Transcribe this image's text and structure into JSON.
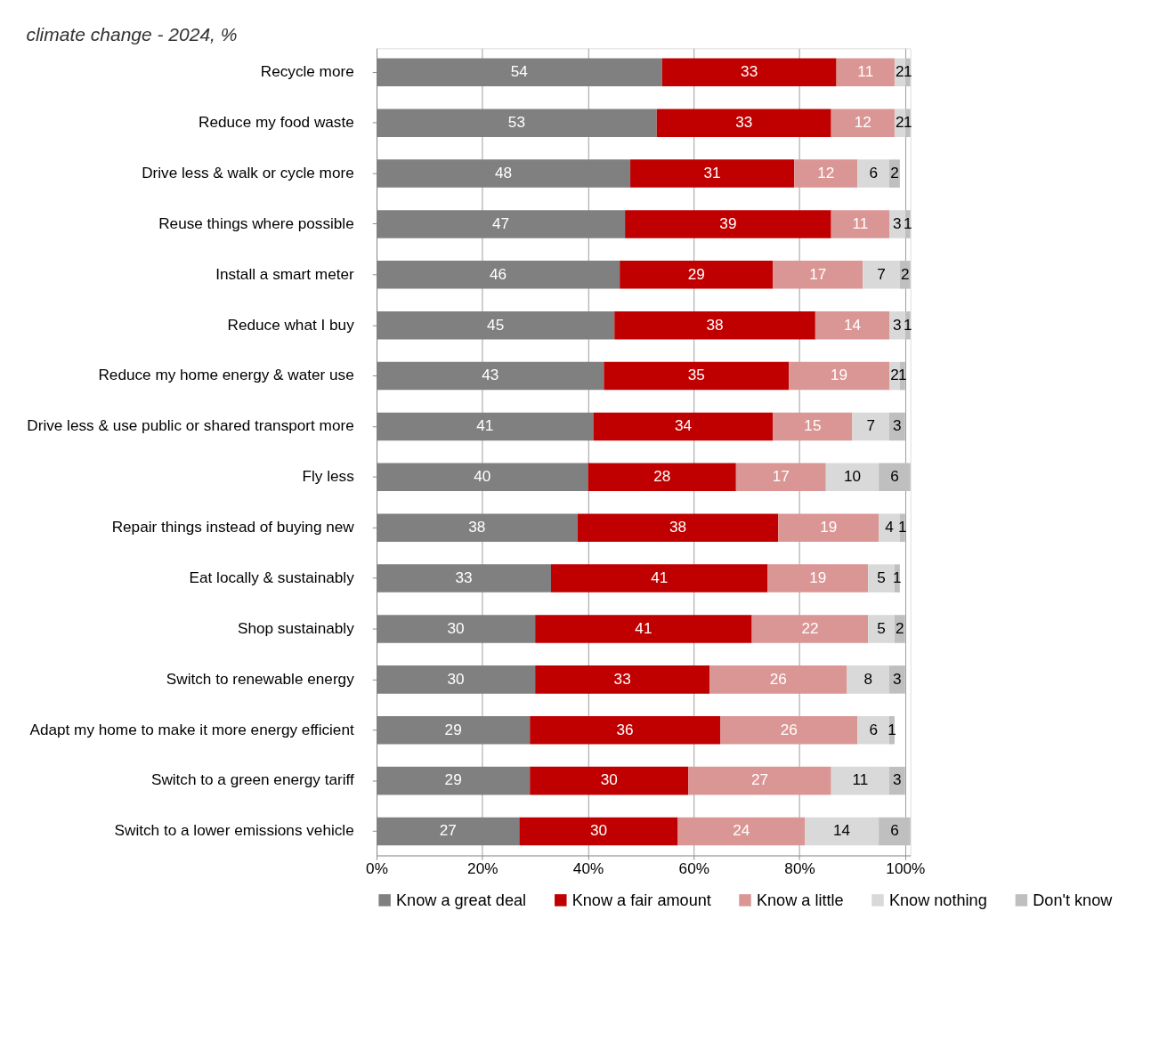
{
  "chart_data": {
    "type": "bar",
    "orientation": "horizontal",
    "stacked": true,
    "title": "climate change - 2024, %",
    "categories": [
      "Recycle more",
      "Reduce my food waste",
      "Drive less & walk or cycle more",
      "Reuse things where possible",
      "Install a smart meter",
      "Reduce what I buy",
      "Reduce my home energy & water  use",
      "Drive less & use public or shared transport more",
      "Fly less",
      "Repair things instead of buying new",
      "Eat locally & sustainably",
      "Shop sustainably",
      "Switch to renewable energy",
      "Adapt my home to make it more energy efficient",
      "Switch to a green energy tariff",
      "Switch to a lower emissions vehicle"
    ],
    "series": [
      {
        "name": "Know a great deal",
        "color": "#808080",
        "values": [
          54,
          53,
          48,
          47,
          46,
          45,
          43,
          41,
          40,
          38,
          33,
          30,
          30,
          29,
          29,
          27
        ]
      },
      {
        "name": "Know a fair amount",
        "color": "#c00000",
        "values": [
          33,
          33,
          31,
          39,
          29,
          38,
          35,
          34,
          28,
          38,
          41,
          41,
          33,
          36,
          30,
          30
        ]
      },
      {
        "name": "Know a little",
        "color": "#da9694",
        "values": [
          11,
          12,
          12,
          11,
          17,
          14,
          19,
          15,
          17,
          19,
          19,
          22,
          26,
          26,
          27,
          24
        ]
      },
      {
        "name": "Know nothing",
        "color": "#d9d9d9",
        "values": [
          2,
          2,
          6,
          3,
          7,
          3,
          2,
          7,
          10,
          4,
          5,
          5,
          8,
          6,
          11,
          14
        ]
      },
      {
        "name": "Don't know",
        "color": "#bfbfbf",
        "values": [
          1,
          1,
          2,
          1,
          2,
          1,
          1,
          3,
          6,
          1,
          1,
          2,
          3,
          1,
          3,
          6
        ]
      }
    ],
    "xlim": [
      0,
      101
    ],
    "xticks": [
      {
        "value": 0,
        "label": "0%"
      },
      {
        "value": 20,
        "label": "20%"
      },
      {
        "value": 40,
        "label": "40%"
      },
      {
        "value": 60,
        "label": "60%"
      },
      {
        "value": 80,
        "label": "80%"
      },
      {
        "value": 100,
        "label": "100%"
      }
    ],
    "grid": "x",
    "legend": "bottom",
    "data_labels": true
  }
}
